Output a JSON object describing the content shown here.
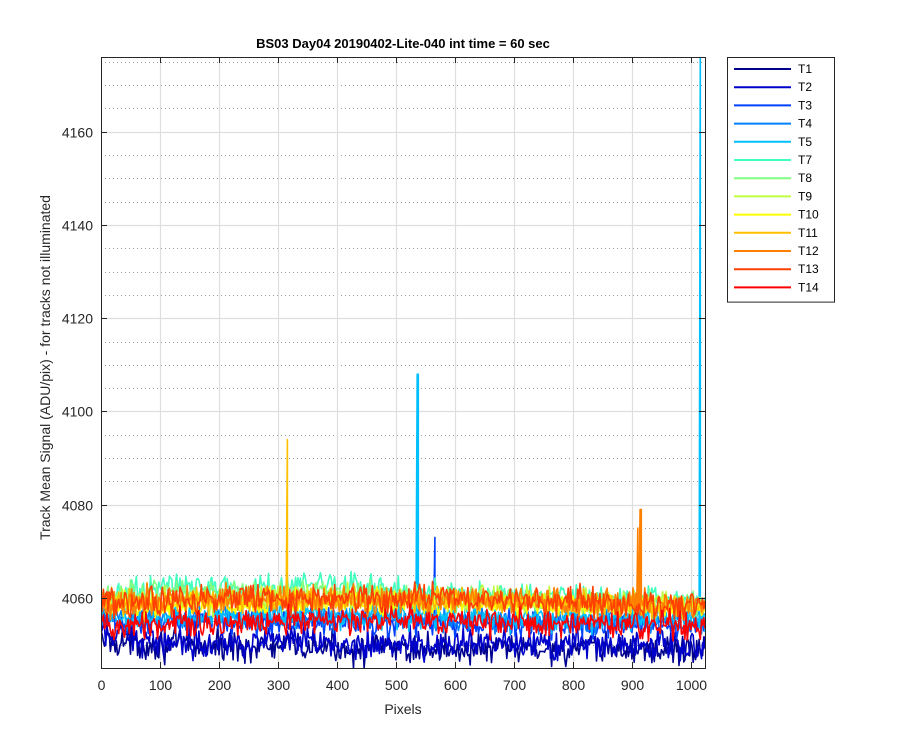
{
  "chart_data": {
    "type": "line",
    "title": "BS03 Day04 20190402-Lite-040 int time = 60 sec",
    "xlabel": "Pixels",
    "ylabel": "Track Mean Signal (ADU/pix) - for tracks not illuminated",
    "xlim": [
      0,
      1024
    ],
    "ylim": [
      4045,
      4176
    ],
    "xticks": [
      0,
      100,
      200,
      300,
      400,
      500,
      600,
      700,
      800,
      900,
      1000
    ],
    "yticks": [
      4060,
      4080,
      4100,
      4120,
      4140,
      4160
    ],
    "yminor_step": 5,
    "grid": true,
    "legend_position": "outside-top-right",
    "series": [
      {
        "name": "T1",
        "color": "#00008F",
        "baseline": [
          [
            0,
            4051
          ],
          [
            100,
            4050
          ],
          [
            300,
            4049.5
          ],
          [
            600,
            4049
          ],
          [
            1024,
            4049
          ]
        ],
        "noise": 1.6,
        "spikes": []
      },
      {
        "name": "T2",
        "color": "#0000CC",
        "baseline": [
          [
            0,
            4052
          ],
          [
            100,
            4051
          ],
          [
            300,
            4050.5
          ],
          [
            600,
            4050
          ],
          [
            1024,
            4050
          ]
        ],
        "noise": 1.6,
        "spikes": []
      },
      {
        "name": "T3",
        "color": "#0040FF",
        "baseline": [
          [
            0,
            4055
          ],
          [
            300,
            4055
          ],
          [
            600,
            4054.5
          ],
          [
            1024,
            4054
          ]
        ],
        "noise": 1.4,
        "spikes": [
          [
            566,
            4073
          ]
        ]
      },
      {
        "name": "T4",
        "color": "#0080FF",
        "baseline": [
          [
            0,
            4056
          ],
          [
            300,
            4056
          ],
          [
            600,
            4055.5
          ],
          [
            1024,
            4055
          ]
        ],
        "noise": 1.4,
        "spikes": []
      },
      {
        "name": "T5",
        "color": "#00BFFF",
        "baseline": [
          [
            0,
            4056
          ],
          [
            300,
            4056.5
          ],
          [
            600,
            4056
          ],
          [
            1024,
            4055.5
          ]
        ],
        "noise": 1.4,
        "spikes": [
          [
            537,
            4108
          ],
          [
            1016,
            4176
          ]
        ]
      },
      {
        "name": "T7",
        "color": "#40FFBF",
        "baseline": [
          [
            0,
            4059
          ],
          [
            100,
            4063
          ],
          [
            250,
            4062
          ],
          [
            400,
            4063
          ],
          [
            500,
            4062
          ],
          [
            600,
            4061
          ],
          [
            1024,
            4059
          ]
        ],
        "noise": 1.3,
        "spikes": []
      },
      {
        "name": "T8",
        "color": "#80FF80",
        "baseline": [
          [
            0,
            4059
          ],
          [
            100,
            4062
          ],
          [
            250,
            4061
          ],
          [
            400,
            4061
          ],
          [
            600,
            4060
          ],
          [
            1024,
            4058.5
          ]
        ],
        "noise": 1.3,
        "spikes": []
      },
      {
        "name": "T9",
        "color": "#BFFF40",
        "baseline": [
          [
            0,
            4059
          ],
          [
            300,
            4060
          ],
          [
            600,
            4060
          ],
          [
            1024,
            4058.5
          ]
        ],
        "noise": 1.3,
        "spikes": []
      },
      {
        "name": "T10",
        "color": "#FFFF00",
        "baseline": [
          [
            0,
            4058
          ],
          [
            300,
            4059
          ],
          [
            600,
            4059
          ],
          [
            1024,
            4057.5
          ]
        ],
        "noise": 1.3,
        "spikes": []
      },
      {
        "name": "T11",
        "color": "#FFBF00",
        "baseline": [
          [
            0,
            4059
          ],
          [
            300,
            4059.5
          ],
          [
            600,
            4059.5
          ],
          [
            1024,
            4058
          ]
        ],
        "noise": 1.3,
        "spikes": [
          [
            316,
            4094
          ]
        ]
      },
      {
        "name": "T12",
        "color": "#FF8000",
        "baseline": [
          [
            0,
            4059
          ],
          [
            300,
            4060
          ],
          [
            600,
            4060
          ],
          [
            1024,
            4058.5
          ]
        ],
        "noise": 1.5,
        "spikes": [
          [
            910,
            4075
          ],
          [
            915,
            4079
          ]
        ]
      },
      {
        "name": "T13",
        "color": "#FF4000",
        "baseline": [
          [
            0,
            4059
          ],
          [
            300,
            4060
          ],
          [
            600,
            4060
          ],
          [
            1024,
            4058.5
          ]
        ],
        "noise": 1.5,
        "spikes": []
      },
      {
        "name": "T14",
        "color": "#FF0000",
        "baseline": [
          [
            0,
            4054
          ],
          [
            300,
            4055
          ],
          [
            600,
            4055
          ],
          [
            1024,
            4054
          ]
        ],
        "noise": 1.4,
        "spikes": []
      }
    ]
  }
}
